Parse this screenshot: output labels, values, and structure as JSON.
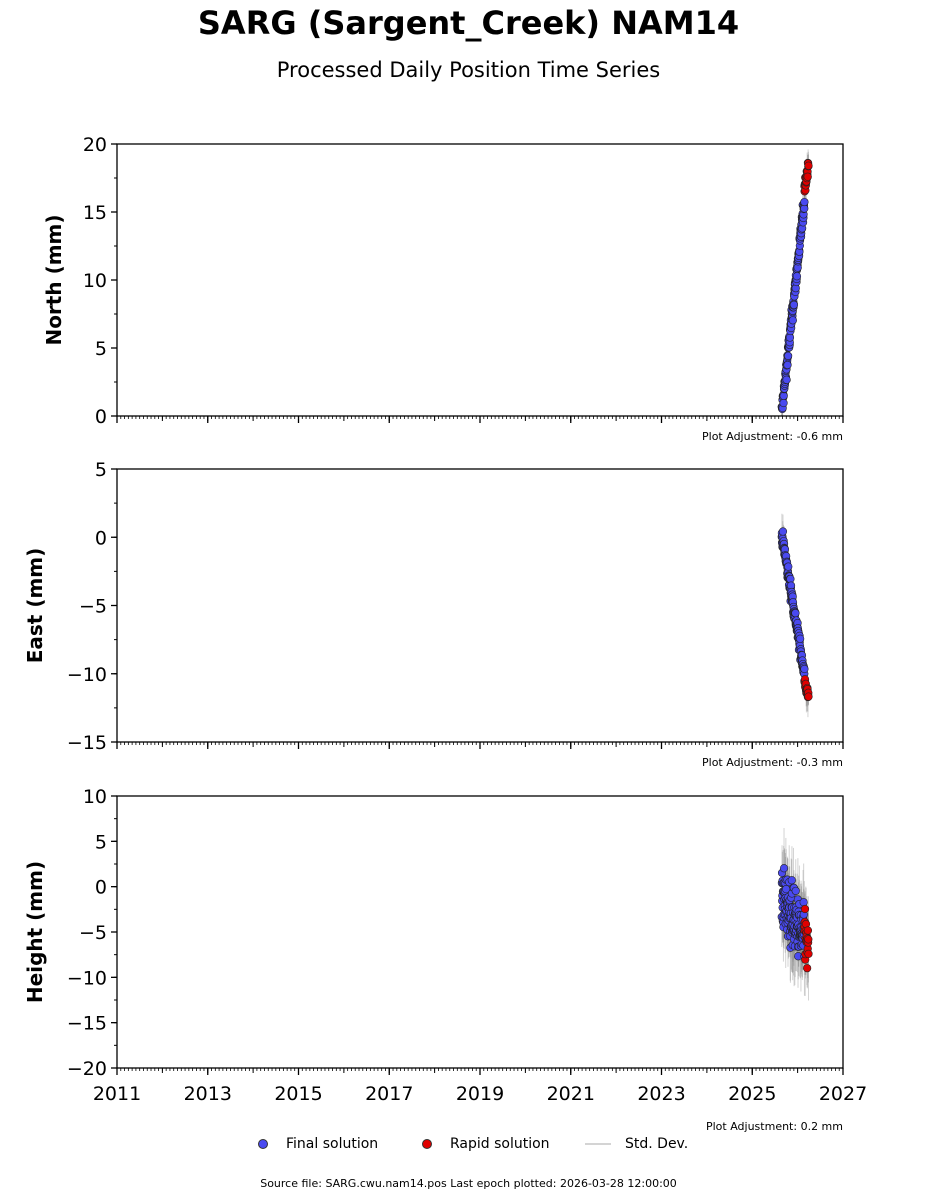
{
  "title": "SARG (Sargent_Creek) NAM14",
  "subtitle": "Processed Daily Position Time Series",
  "legend": {
    "final": "Final solution",
    "rapid": "Rapid solution",
    "std": "Std. Dev."
  },
  "footer": "Source file: SARG.cwu.nam14.pos  Last epoch plotted: 2026-03-28 12:00:00",
  "colors": {
    "final": "#4a4af0",
    "rapid": "#e00000",
    "std": "#808080"
  },
  "chart_data": [
    {
      "type": "scatter",
      "ylabel": "North (mm)",
      "adjustment": "Plot Adjustment: -0.6 mm",
      "xlim": [
        2011,
        2027
      ],
      "ylim": [
        0,
        20
      ],
      "yticks": [
        0,
        5,
        10,
        15,
        20
      ],
      "ytick_labels": [
        "0",
        "5",
        "10",
        "15",
        "20"
      ],
      "xticks": [
        2011,
        2013,
        2015,
        2017,
        2019,
        2021,
        2023,
        2025,
        2027
      ],
      "xtick_labels": [
        "",
        "",
        "",
        "",
        "",
        "",
        "",
        "",
        ""
      ],
      "final": {
        "start": 2025.65,
        "end": 2026.15,
        "y_start": 0.3,
        "y_end": 15.8,
        "noise": 0.7,
        "std": 0.9
      },
      "rapid": {
        "start": 2026.15,
        "end": 2026.24,
        "y_start": 16.8,
        "y_end": 18.4,
        "noise": 0.5
      }
    },
    {
      "type": "scatter",
      "ylabel": "East (mm)",
      "adjustment": "Plot Adjustment: -0.3 mm",
      "xlim": [
        2011,
        2027
      ],
      "ylim": [
        -15,
        5
      ],
      "yticks": [
        -15,
        -10,
        -5,
        0,
        5
      ],
      "ytick_labels": [
        "−15",
        "−10",
        "−5",
        "0",
        "5"
      ],
      "xticks": [
        2011,
        2013,
        2015,
        2017,
        2019,
        2021,
        2023,
        2025,
        2027
      ],
      "xtick_labels": [
        "",
        "",
        "",
        "",
        "",
        "",
        "",
        "",
        ""
      ],
      "final": {
        "start": 2025.65,
        "end": 2026.15,
        "y_start": 0.2,
        "y_end": -10.0,
        "noise": 0.6,
        "std": 1.0
      },
      "rapid": {
        "start": 2026.15,
        "end": 2026.24,
        "y_start": -10.6,
        "y_end": -11.7,
        "noise": 0.4
      }
    },
    {
      "type": "scatter",
      "ylabel": "Height (mm)",
      "adjustment": "Plot Adjustment: 0.2 mm",
      "xlim": [
        2011,
        2027
      ],
      "ylim": [
        -20,
        10
      ],
      "yticks": [
        -20,
        -15,
        -10,
        -5,
        0,
        5,
        10
      ],
      "ytick_labels": [
        "−20",
        "−15",
        "−10",
        "−5",
        "0",
        "5",
        "10"
      ],
      "xticks": [
        2011,
        2013,
        2015,
        2017,
        2019,
        2021,
        2023,
        2025,
        2027
      ],
      "xtick_labels": [
        "2011",
        "2013",
        "2015",
        "2017",
        "2019",
        "2021",
        "2023",
        "2025",
        "2027"
      ],
      "final": {
        "start": 2025.65,
        "end": 2026.15,
        "y_start": -1.0,
        "y_end": -6.0,
        "noise": 3.2,
        "std": 3.5
      },
      "rapid": {
        "start": 2026.15,
        "end": 2026.24,
        "y_start": -4.5,
        "y_end": -8.0,
        "noise": 2.8
      }
    }
  ]
}
